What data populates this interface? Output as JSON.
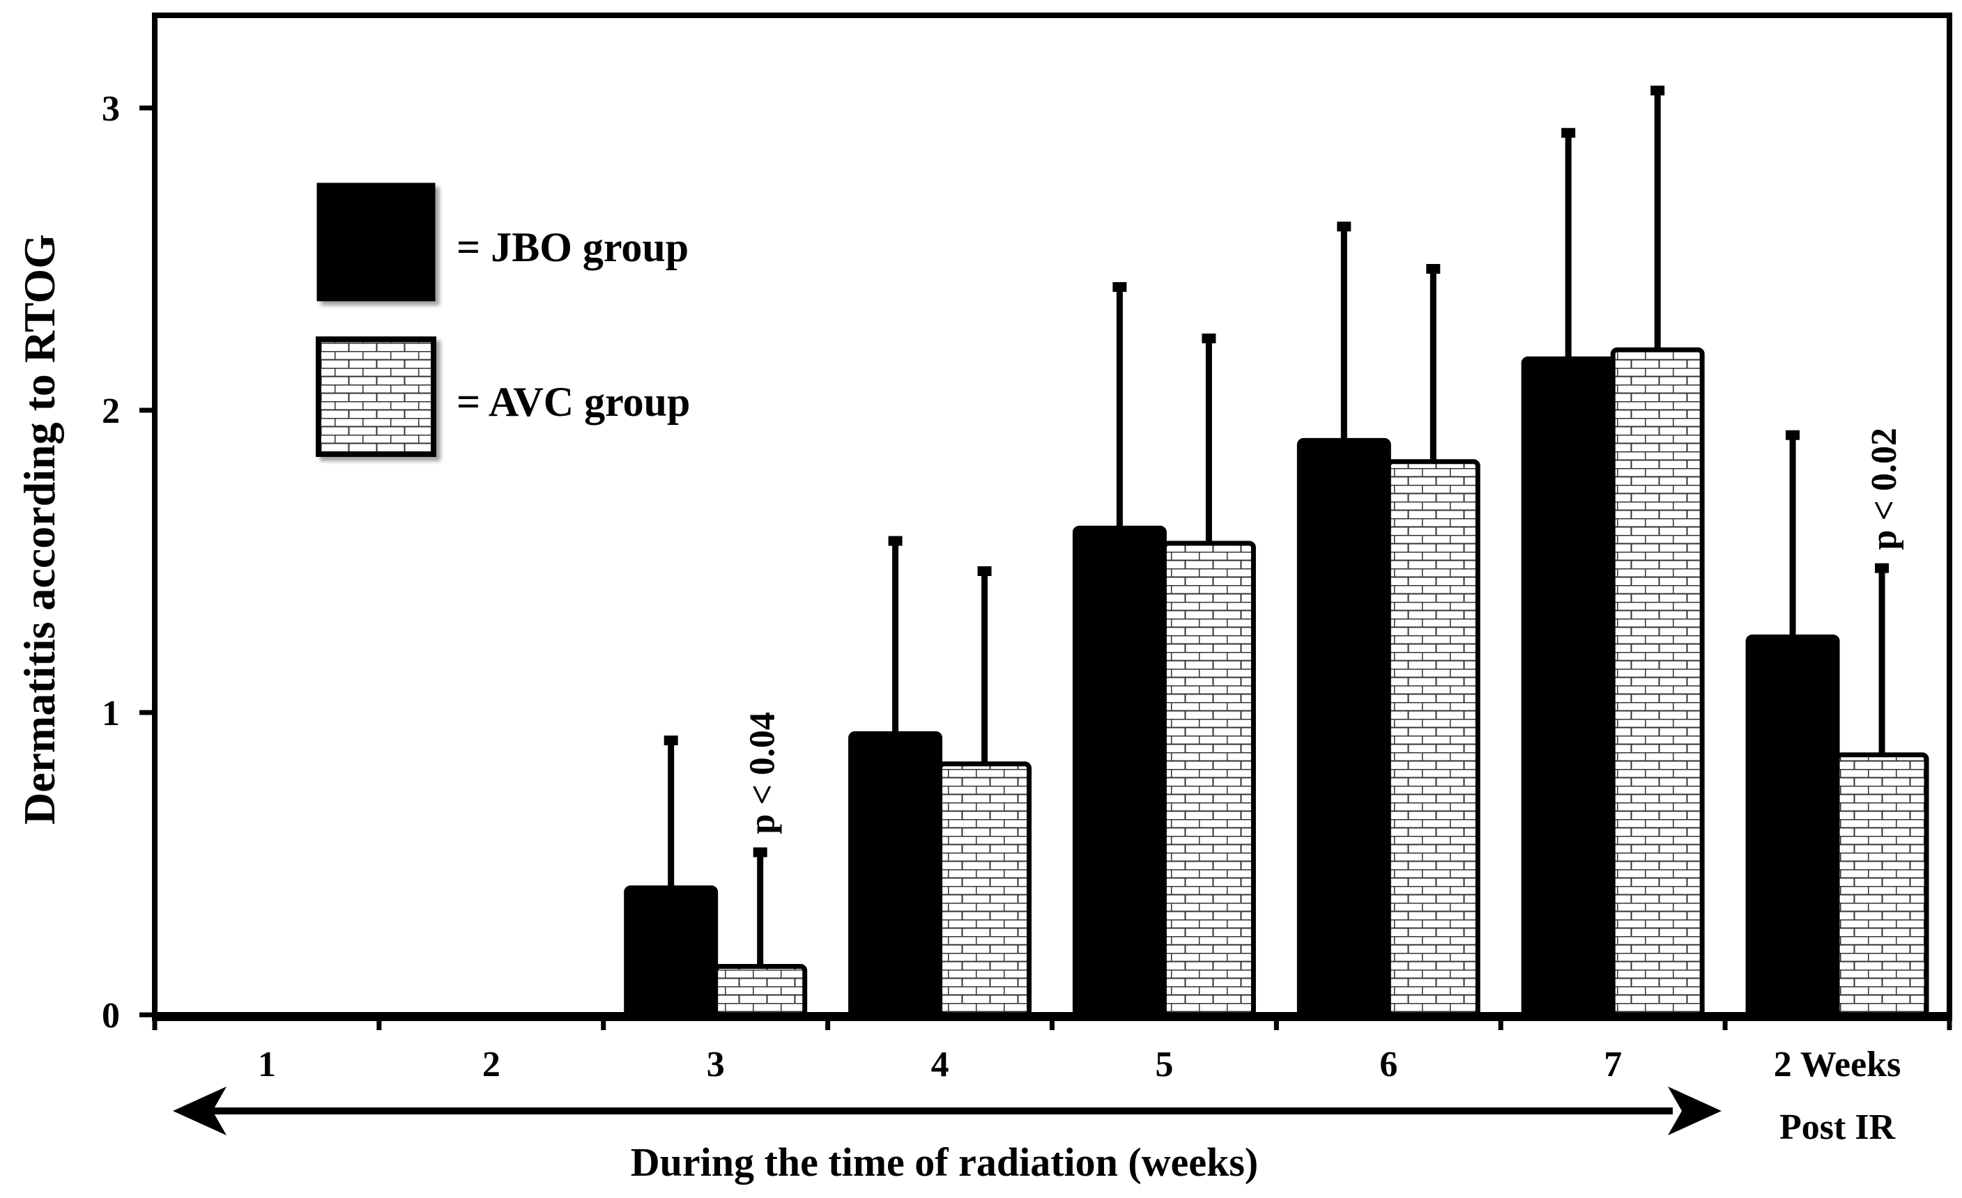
{
  "chart_data": {
    "type": "bar",
    "title": "",
    "ylabel": "Dermatitis according to RTOG",
    "xlabel": "During the time of radiation (weeks)",
    "ylim": [
      0,
      3.3
    ],
    "yticks": [
      "0",
      "1",
      "2",
      "3"
    ],
    "categories": [
      "1",
      "2",
      "3",
      "4",
      "5",
      "6",
      "7",
      "2 Weeks Post IR"
    ],
    "category_lines": [
      [
        "1"
      ],
      [
        "2"
      ],
      [
        "3"
      ],
      [
        "4"
      ],
      [
        "5"
      ],
      [
        "6"
      ],
      [
        "7"
      ],
      [
        "2 Weeks",
        "Post IR"
      ]
    ],
    "series": [
      {
        "name": "JBO group",
        "legend_label": "= JBO group",
        "fill": "solid",
        "color": "#000000",
        "values": [
          0,
          0,
          0.42,
          0.93,
          1.61,
          1.9,
          2.17,
          1.25
        ],
        "error": [
          0,
          0,
          0.49,
          0.64,
          0.8,
          0.71,
          0.75,
          0.67
        ]
      },
      {
        "name": "AVC group",
        "legend_label": "= AVC group",
        "fill": "brick-pattern",
        "color": "#ffffff",
        "values": [
          0,
          0,
          0.16,
          0.83,
          1.56,
          1.83,
          2.2,
          0.86
        ],
        "error": [
          0,
          0,
          0.38,
          0.64,
          0.68,
          0.64,
          0.86,
          0.62
        ]
      }
    ],
    "annotations": [
      {
        "text": "p < 0.04",
        "category_index": 2
      },
      {
        "text": "p < 0.02",
        "category_index": 7
      }
    ],
    "arrow_span": "categories 1-7 (double-headed arrow)"
  }
}
